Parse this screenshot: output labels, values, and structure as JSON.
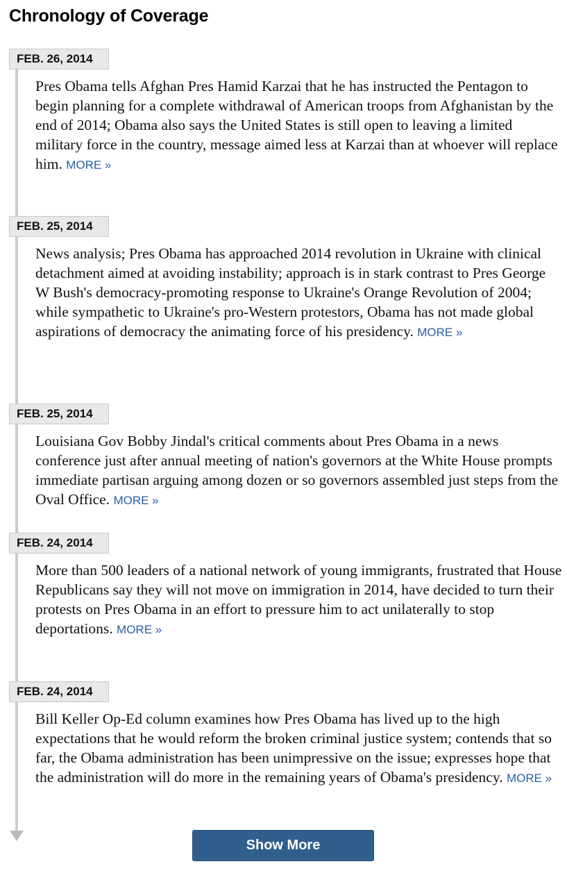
{
  "page": {
    "title": "Chronology of Coverage"
  },
  "entries": [
    {
      "date": "FEB. 26, 2014",
      "summary": "Pres Obama tells Afghan Pres Hamid Karzai that he has instructed the Pentagon to begin planning for a complete withdrawal of American troops from Afghanistan by the end of 2014; Obama also says the United States is still open to leaving a limited military force in the country, message aimed less at Karzai than at whoever will replace him.",
      "more_label": "MORE »"
    },
    {
      "date": "FEB. 25, 2014",
      "summary": "News analysis; Pres Obama has approached 2014 revolution in Ukraine with clinical detachment aimed at avoiding instability; approach is in stark contrast to Pres George W Bush's democracy-promoting response to Ukraine's Orange Revolution of 2004; while sympathetic to Ukraine's pro-Western protestors, Obama has not made global aspirations of democracy the animating force of his presidency.",
      "more_label": "MORE »"
    },
    {
      "date": "FEB. 25, 2014",
      "summary": "Louisiana Gov Bobby Jindal's critical comments about Pres Obama in a news conference just after annual meeting of nation's governors at the White House prompts immediate partisan arguing among dozen or so governors assembled just steps from the Oval Office.",
      "more_label": "MORE »"
    },
    {
      "date": "FEB. 24, 2014",
      "summary": "More than 500 leaders of a national network of young immigrants, frustrated that House Republicans say they will not move on immigration in 2014, have decided to turn their protests on Pres Obama in an effort to pressure him to act unilaterally to stop deportations.",
      "more_label": "MORE »"
    },
    {
      "date": "FEB. 24, 2014",
      "summary": "Bill Keller Op-Ed column examines how Pres Obama has lived up to the high expectations that he would reform the broken criminal justice system; contends that so far, the Obama administration has been unimpressive on the issue; expresses hope that the administration will do more in the remaining years of Obama's presidency.",
      "more_label": "MORE »"
    }
  ],
  "show_more": {
    "label": "Show More"
  },
  "colors": {
    "link": "#2a5fa1",
    "button": "#305f8e",
    "badge_bg": "#e8e8e8",
    "timeline": "#cccccc"
  }
}
